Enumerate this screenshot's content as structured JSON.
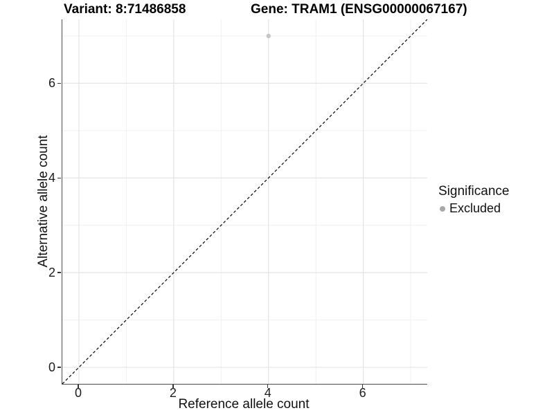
{
  "plot_titles": {
    "left": "Variant: 8:71486858",
    "right": "Gene: TRAM1 (ENSG00000067167)"
  },
  "axes": {
    "x": {
      "title": "Reference allele count",
      "tick_labels": [
        "0",
        "2",
        "4",
        "6"
      ]
    },
    "y": {
      "title": "Alternative allele count",
      "tick_labels": [
        "0",
        "2",
        "4",
        "6"
      ]
    }
  },
  "legend": {
    "title": "Significance",
    "items": [
      {
        "label": "Excluded",
        "color": "#a8a8a8"
      }
    ]
  },
  "chart_data": {
    "type": "scatter",
    "title": "Variant: 8:71486858   Gene: TRAM1 (ENSG00000067167)",
    "xlabel": "Reference allele count",
    "ylabel": "Alternative allele count",
    "xlim": [
      -0.35,
      7.35
    ],
    "ylim": [
      -0.35,
      7.35
    ],
    "x_ticks": [
      0,
      2,
      4,
      6
    ],
    "y_ticks": [
      0,
      2,
      4,
      6
    ],
    "x_minor_ticks": [
      1,
      3,
      5,
      7
    ],
    "y_minor_ticks": [
      1,
      3,
      5,
      7
    ],
    "grid": true,
    "legend_position": "right",
    "series": [
      {
        "name": "Excluded",
        "color": "#c6c6c6",
        "points": [
          {
            "x": 4,
            "y": 7
          }
        ]
      }
    ],
    "reference_line": {
      "type": "identity y=x",
      "style": "dashed",
      "color": "#000000"
    },
    "colors": {
      "grid_major": "#e4e4e4",
      "grid_minor": "#f0f0f0",
      "axis_line": "#4b4b4b"
    }
  }
}
